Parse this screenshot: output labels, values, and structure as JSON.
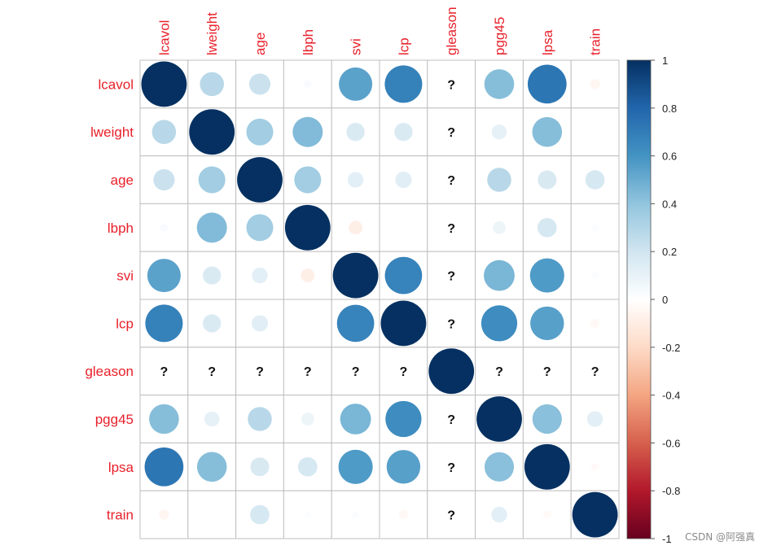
{
  "chart_data": {
    "type": "heatmap",
    "style": "circle-correlation-matrix",
    "variables": [
      "lcavol",
      "lweight",
      "age",
      "lbph",
      "svi",
      "lcp",
      "gleason",
      "pgg45",
      "lpsa",
      "train"
    ],
    "missing_marker": "?",
    "values": [
      [
        1.0,
        0.28,
        0.22,
        0.03,
        0.54,
        0.68,
        null,
        0.43,
        0.73,
        -0.05
      ],
      [
        0.28,
        1.0,
        0.35,
        0.44,
        0.16,
        0.16,
        null,
        0.11,
        0.43,
        0.0
      ],
      [
        0.22,
        0.35,
        1.0,
        0.35,
        0.12,
        0.13,
        null,
        0.28,
        0.17,
        0.18
      ],
      [
        0.03,
        0.44,
        0.35,
        1.0,
        -0.09,
        0.0,
        null,
        0.08,
        0.18,
        0.02
      ],
      [
        0.54,
        0.16,
        0.12,
        -0.09,
        1.0,
        0.67,
        null,
        0.46,
        0.57,
        0.02
      ],
      [
        0.68,
        0.16,
        0.13,
        0.0,
        0.67,
        1.0,
        null,
        0.63,
        0.55,
        -0.04
      ],
      [
        null,
        null,
        null,
        null,
        null,
        null,
        1.0,
        null,
        null,
        null
      ],
      [
        0.43,
        0.11,
        0.28,
        0.08,
        0.46,
        0.63,
        null,
        1.0,
        0.42,
        0.12
      ],
      [
        0.73,
        0.43,
        0.17,
        0.18,
        0.57,
        0.55,
        null,
        0.42,
        1.0,
        -0.03
      ],
      [
        -0.05,
        0.0,
        0.18,
        0.02,
        0.02,
        -0.04,
        null,
        0.12,
        -0.03,
        1.0
      ]
    ],
    "colorbar": {
      "range": [
        -1,
        1
      ],
      "ticks": [
        "1",
        "0.8",
        "0.6",
        "0.4",
        "0.2",
        "0",
        "-0.2",
        "-0.4",
        "-0.6",
        "-0.8",
        "-1"
      ],
      "colors": [
        "#67001F",
        "#B2182B",
        "#D6604D",
        "#F4A582",
        "#FDDBC7",
        "#FFFFFF",
        "#D1E5F0",
        "#92C5DE",
        "#4393C3",
        "#2166AC",
        "#053061"
      ]
    },
    "label_color": "#E8202A",
    "grid_color": "#BFBFBF"
  },
  "watermark": "CSDN @阿强真"
}
